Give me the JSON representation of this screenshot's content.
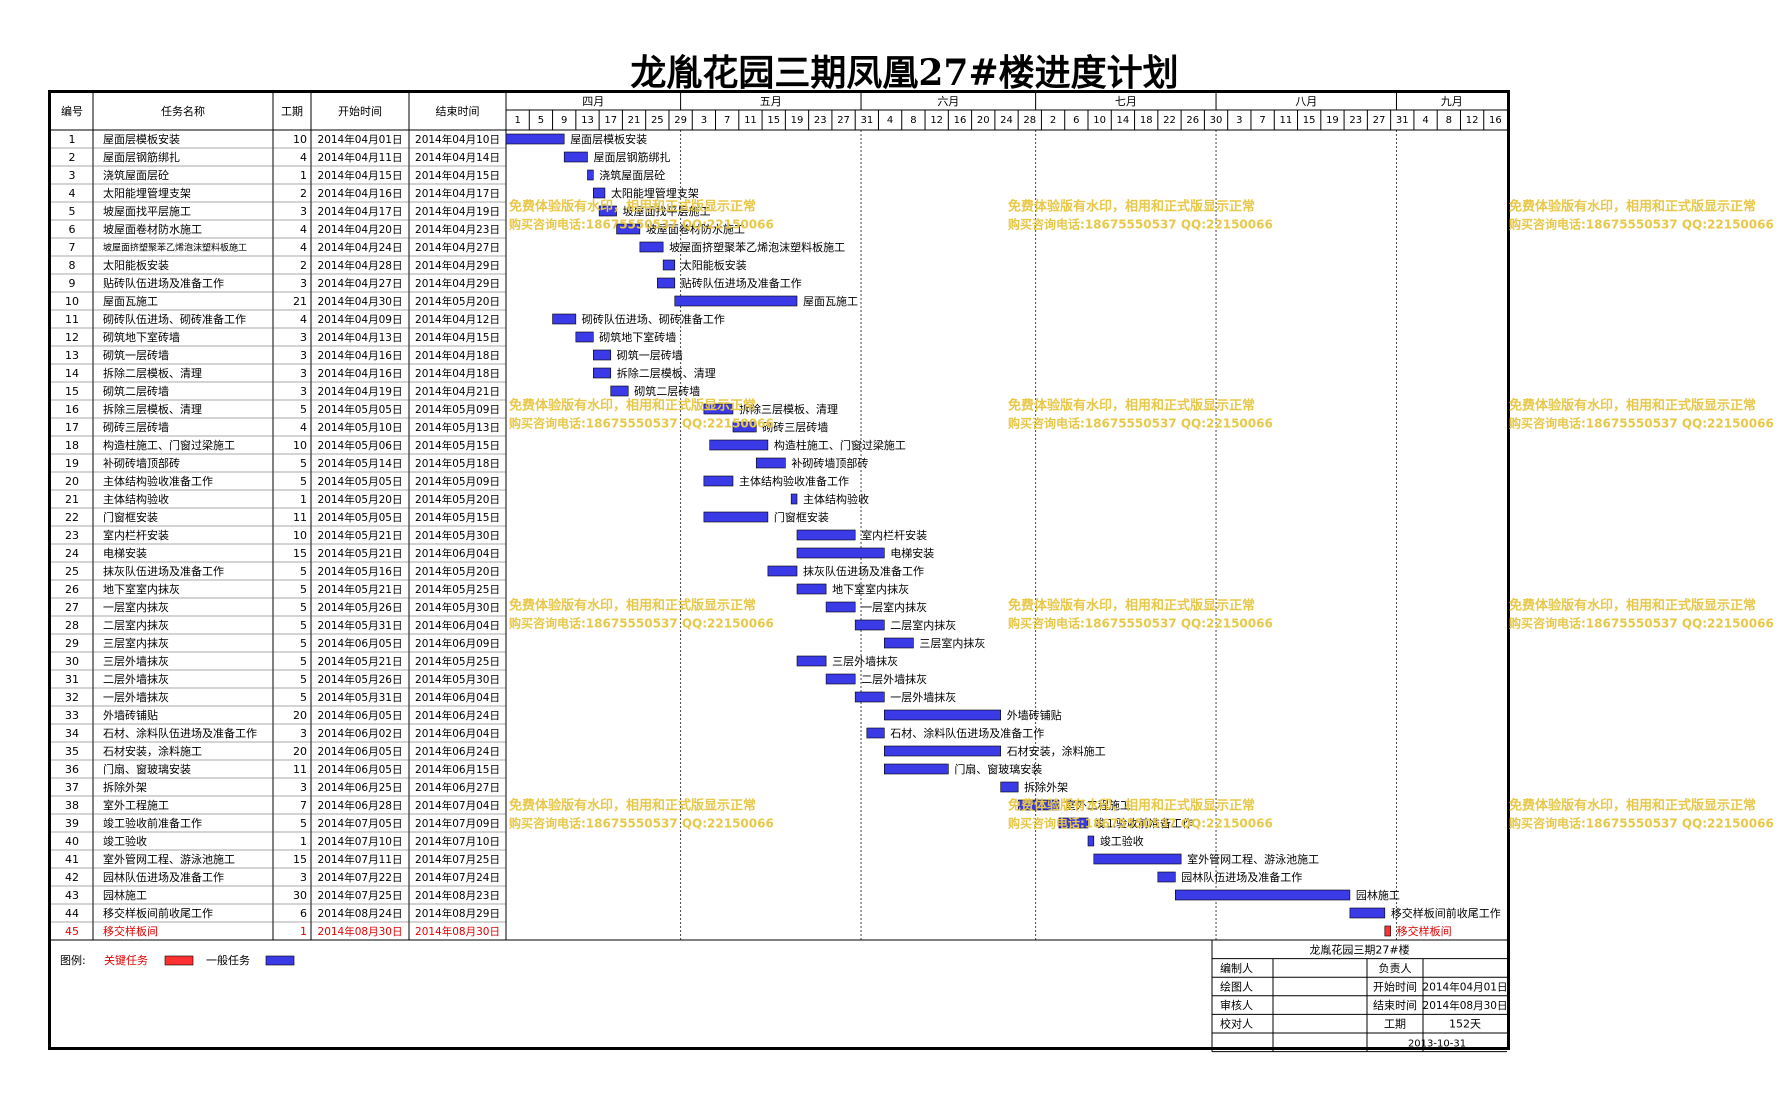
{
  "title": "龙胤花园三期凤凰27#楼进度计划",
  "columns": {
    "no": "编号",
    "name": "任务名称",
    "duration": "工期",
    "start": "开始时间",
    "end": "结束时间"
  },
  "months": [
    {
      "label": "四月",
      "days": [
        "1",
        "5",
        "9",
        "13",
        "17",
        "21",
        "25",
        "29"
      ]
    },
    {
      "label": "五月",
      "days": [
        "3",
        "7",
        "11",
        "15",
        "19",
        "23",
        "27"
      ]
    },
    {
      "label": "六月",
      "days": [
        "31",
        "4",
        "8",
        "12",
        "16",
        "20",
        "24",
        "28"
      ]
    },
    {
      "label": "七月",
      "days": [
        "2",
        "6",
        "10",
        "14",
        "18",
        "22",
        "26",
        "30"
      ]
    },
    {
      "label": "八月",
      "days": [
        "3",
        "7",
        "11",
        "15",
        "19",
        "23",
        "27"
      ]
    },
    {
      "label": "九月",
      "days": [
        "31",
        "4",
        "8",
        "12",
        "16"
      ]
    }
  ],
  "chart_data": {
    "type": "gantt",
    "title": "龙胤花园三期凤凰27#楼进度计划",
    "x_range": [
      "2014-04-01",
      "2014-09-20"
    ],
    "legend": {
      "label": "图例:",
      "critical": "关键任务",
      "normal": "一般任务"
    },
    "colors": {
      "normal": "#3a3ae6",
      "critical": "#ff3030",
      "critical_text": "#e00000"
    },
    "tasks": [
      {
        "id": "1",
        "name": "屋面层模板安装",
        "duration": "10",
        "start": "2014年04月01日",
        "end": "2014年04月10日",
        "s": "2014-04-01",
        "e": "2014-04-10",
        "critical": false
      },
      {
        "id": "2",
        "name": "屋面层钢筋绑扎",
        "duration": "4",
        "start": "2014年04月11日",
        "end": "2014年04月14日",
        "s": "2014-04-11",
        "e": "2014-04-14",
        "critical": false
      },
      {
        "id": "3",
        "name": "浇筑屋面层砼",
        "duration": "1",
        "start": "2014年04月15日",
        "end": "2014年04月15日",
        "s": "2014-04-15",
        "e": "2014-04-15",
        "critical": false
      },
      {
        "id": "4",
        "name": "太阳能埋管埋支架",
        "duration": "2",
        "start": "2014年04月16日",
        "end": "2014年04月17日",
        "s": "2014-04-16",
        "e": "2014-04-17",
        "critical": false
      },
      {
        "id": "5",
        "name": "坡屋面找平层施工",
        "duration": "3",
        "start": "2014年04月17日",
        "end": "2014年04月19日",
        "s": "2014-04-17",
        "e": "2014-04-19",
        "critical": false
      },
      {
        "id": "6",
        "name": "坡屋面卷材防水施工",
        "duration": "4",
        "start": "2014年04月20日",
        "end": "2014年04月23日",
        "s": "2014-04-20",
        "e": "2014-04-23",
        "critical": false
      },
      {
        "id": "7",
        "name": "坡屋面挤塑聚苯乙烯泡沫塑料板施工",
        "duration": "4",
        "start": "2014年04月24日",
        "end": "2014年04月27日",
        "s": "2014-04-24",
        "e": "2014-04-27",
        "critical": false
      },
      {
        "id": "8",
        "name": "太阳能板安装",
        "duration": "2",
        "start": "2014年04月28日",
        "end": "2014年04月29日",
        "s": "2014-04-28",
        "e": "2014-04-29",
        "critical": false
      },
      {
        "id": "9",
        "name": "贴砖队伍进场及准备工作",
        "duration": "3",
        "start": "2014年04月27日",
        "end": "2014年04月29日",
        "s": "2014-04-27",
        "e": "2014-04-29",
        "critical": false
      },
      {
        "id": "10",
        "name": "屋面瓦施工",
        "duration": "21",
        "start": "2014年04月30日",
        "end": "2014年05月20日",
        "s": "2014-04-30",
        "e": "2014-05-20",
        "critical": false
      },
      {
        "id": "11",
        "name": "砌砖队伍进场、砌砖准备工作",
        "duration": "4",
        "start": "2014年04月09日",
        "end": "2014年04月12日",
        "s": "2014-04-09",
        "e": "2014-04-12",
        "critical": false
      },
      {
        "id": "12",
        "name": "砌筑地下室砖墙",
        "duration": "3",
        "start": "2014年04月13日",
        "end": "2014年04月15日",
        "s": "2014-04-13",
        "e": "2014-04-15",
        "critical": false
      },
      {
        "id": "13",
        "name": "砌筑一层砖墙",
        "duration": "3",
        "start": "2014年04月16日",
        "end": "2014年04月18日",
        "s": "2014-04-16",
        "e": "2014-04-18",
        "critical": false
      },
      {
        "id": "14",
        "name": "拆除二层模板、清理",
        "duration": "3",
        "start": "2014年04月16日",
        "end": "2014年04月18日",
        "s": "2014-04-16",
        "e": "2014-04-18",
        "critical": false
      },
      {
        "id": "15",
        "name": "砌筑二层砖墙",
        "duration": "3",
        "start": "2014年04月19日",
        "end": "2014年04月21日",
        "s": "2014-04-19",
        "e": "2014-04-21",
        "critical": false
      },
      {
        "id": "16",
        "name": "拆除三层模板、清理",
        "duration": "5",
        "start": "2014年05月05日",
        "end": "2014年05月09日",
        "s": "2014-05-05",
        "e": "2014-05-09",
        "critical": false
      },
      {
        "id": "17",
        "name": "砌砖三层砖墙",
        "duration": "4",
        "start": "2014年05月10日",
        "end": "2014年05月13日",
        "s": "2014-05-10",
        "e": "2014-05-13",
        "critical": false
      },
      {
        "id": "18",
        "name": "构造柱施工、门窗过梁施工",
        "duration": "10",
        "start": "2014年05月06日",
        "end": "2014年05月15日",
        "s": "2014-05-06",
        "e": "2014-05-15",
        "critical": false
      },
      {
        "id": "19",
        "name": "补砌砖墙顶部砖",
        "duration": "5",
        "start": "2014年05月14日",
        "end": "2014年05月18日",
        "s": "2014-05-14",
        "e": "2014-05-18",
        "critical": false
      },
      {
        "id": "20",
        "name": "主体结构验收准备工作",
        "duration": "5",
        "start": "2014年05月05日",
        "end": "2014年05月09日",
        "s": "2014-05-05",
        "e": "2014-05-09",
        "critical": false
      },
      {
        "id": "21",
        "name": "主体结构验收",
        "duration": "1",
        "start": "2014年05月20日",
        "end": "2014年05月20日",
        "s": "2014-05-20",
        "e": "2014-05-20",
        "critical": false
      },
      {
        "id": "22",
        "name": "门窗框安装",
        "duration": "11",
        "start": "2014年05月05日",
        "end": "2014年05月15日",
        "s": "2014-05-05",
        "e": "2014-05-15",
        "critical": false
      },
      {
        "id": "23",
        "name": "室内栏杆安装",
        "duration": "10",
        "start": "2014年05月21日",
        "end": "2014年05月30日",
        "s": "2014-05-21",
        "e": "2014-05-30",
        "critical": false
      },
      {
        "id": "24",
        "name": "电梯安装",
        "duration": "15",
        "start": "2014年05月21日",
        "end": "2014年06月04日",
        "s": "2014-05-21",
        "e": "2014-06-04",
        "critical": false
      },
      {
        "id": "25",
        "name": "抹灰队伍进场及准备工作",
        "duration": "5",
        "start": "2014年05月16日",
        "end": "2014年05月20日",
        "s": "2014-05-16",
        "e": "2014-05-20",
        "critical": false
      },
      {
        "id": "26",
        "name": "地下室室内抹灰",
        "duration": "5",
        "start": "2014年05月21日",
        "end": "2014年05月25日",
        "s": "2014-05-21",
        "e": "2014-05-25",
        "critical": false
      },
      {
        "id": "27",
        "name": "一层室内抹灰",
        "duration": "5",
        "start": "2014年05月26日",
        "end": "2014年05月30日",
        "s": "2014-05-26",
        "e": "2014-05-30",
        "critical": false
      },
      {
        "id": "28",
        "name": "二层室内抹灰",
        "duration": "5",
        "start": "2014年05月31日",
        "end": "2014年06月04日",
        "s": "2014-05-31",
        "e": "2014-06-04",
        "critical": false
      },
      {
        "id": "29",
        "name": "三层室内抹灰",
        "duration": "5",
        "start": "2014年06月05日",
        "end": "2014年06月09日",
        "s": "2014-06-05",
        "e": "2014-06-09",
        "critical": false
      },
      {
        "id": "30",
        "name": "三层外墙抹灰",
        "duration": "5",
        "start": "2014年05月21日",
        "end": "2014年05月25日",
        "s": "2014-05-21",
        "e": "2014-05-25",
        "critical": false
      },
      {
        "id": "31",
        "name": "二层外墙抹灰",
        "duration": "5",
        "start": "2014年05月26日",
        "end": "2014年05月30日",
        "s": "2014-05-26",
        "e": "2014-05-30",
        "critical": false
      },
      {
        "id": "32",
        "name": "一层外墙抹灰",
        "duration": "5",
        "start": "2014年05月31日",
        "end": "2014年06月04日",
        "s": "2014-05-31",
        "e": "2014-06-04",
        "critical": false
      },
      {
        "id": "33",
        "name": "外墙砖铺贴",
        "duration": "20",
        "start": "2014年06月05日",
        "end": "2014年06月24日",
        "s": "2014-06-05",
        "e": "2014-06-24",
        "critical": false
      },
      {
        "id": "34",
        "name": "石材、涂料队伍进场及准备工作",
        "duration": "3",
        "start": "2014年06月02日",
        "end": "2014年06月04日",
        "s": "2014-06-02",
        "e": "2014-06-04",
        "critical": false
      },
      {
        "id": "35",
        "name": "石材安装，涂料施工",
        "duration": "20",
        "start": "2014年06月05日",
        "end": "2014年06月24日",
        "s": "2014-06-05",
        "e": "2014-06-24",
        "critical": false
      },
      {
        "id": "36",
        "name": "门扇、窗玻璃安装",
        "duration": "11",
        "start": "2014年06月05日",
        "end": "2014年06月15日",
        "s": "2014-06-05",
        "e": "2014-06-15",
        "critical": false
      },
      {
        "id": "37",
        "name": "拆除外架",
        "duration": "3",
        "start": "2014年06月25日",
        "end": "2014年06月27日",
        "s": "2014-06-25",
        "e": "2014-06-27",
        "critical": false
      },
      {
        "id": "38",
        "name": "室外工程施工",
        "duration": "7",
        "start": "2014年06月28日",
        "end": "2014年07月04日",
        "s": "2014-06-28",
        "e": "2014-07-04",
        "critical": false
      },
      {
        "id": "39",
        "name": "竣工验收前准备工作",
        "duration": "5",
        "start": "2014年07月05日",
        "end": "2014年07月09日",
        "s": "2014-07-05",
        "e": "2014-07-09",
        "critical": false
      },
      {
        "id": "40",
        "name": "竣工验收",
        "duration": "1",
        "start": "2014年07月10日",
        "end": "2014年07月10日",
        "s": "2014-07-10",
        "e": "2014-07-10",
        "critical": false
      },
      {
        "id": "41",
        "name": "室外管网工程、游泳池施工",
        "duration": "15",
        "start": "2014年07月11日",
        "end": "2014年07月25日",
        "s": "2014-07-11",
        "e": "2014-07-25",
        "critical": false
      },
      {
        "id": "42",
        "name": "园林队伍进场及准备工作",
        "duration": "3",
        "start": "2014年07月22日",
        "end": "2014年07月24日",
        "s": "2014-07-22",
        "e": "2014-07-24",
        "critical": false
      },
      {
        "id": "43",
        "name": "园林施工",
        "duration": "30",
        "start": "2014年07月25日",
        "end": "2014年08月23日",
        "s": "2014-07-25",
        "e": "2014-08-23",
        "critical": false
      },
      {
        "id": "44",
        "name": "移交样板间前收尾工作",
        "duration": "6",
        "start": "2014年08月24日",
        "end": "2014年08月29日",
        "s": "2014-08-24",
        "e": "2014-08-29",
        "critical": false
      },
      {
        "id": "45",
        "name": "移交样板间",
        "duration": "1",
        "start": "2014年08月30日",
        "end": "2014年08月30日",
        "s": "2014-08-30",
        "e": "2014-08-30",
        "critical": true
      }
    ]
  },
  "watermark": {
    "line1": "免费体验版有水印，相用和正式版显示正常",
    "line2": "购买咨询电话:18675550537 QQ:22150066",
    "color": "#e8c84a"
  },
  "info_box": {
    "header": "龙胤花园三期27#楼",
    "labels": [
      "编制人",
      "绘图人",
      "审核人",
      "校对人"
    ],
    "responsible_label": "负责人",
    "start_label": "开始时间",
    "start_value": "2014年04月01日",
    "end_label": "结束时间",
    "end_value": "2014年08月30日",
    "duration_label": "工期",
    "duration_value": "152天",
    "date": "2013-10-31"
  }
}
